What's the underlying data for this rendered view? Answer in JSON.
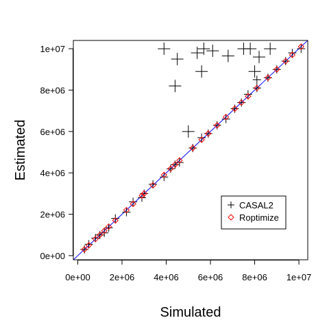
{
  "chart_data": {
    "type": "scatter",
    "xlabel": "Simulated",
    "ylabel": "Estimated",
    "xlim": [
      -200000,
      10400000
    ],
    "ylim": [
      -200000,
      10400000
    ],
    "x_ticks": [
      0,
      2000000,
      4000000,
      6000000,
      8000000,
      10000000
    ],
    "x_tick_labels": [
      "0e+00",
      "2e+06",
      "4e+06",
      "6e+06",
      "8e+06",
      "1e+07"
    ],
    "y_ticks": [
      0,
      2000000,
      4000000,
      6000000,
      8000000,
      10000000
    ],
    "y_tick_labels": [
      "0e+00",
      "2e+06",
      "4e+06",
      "6e+06",
      "8e+06",
      "1e+07"
    ],
    "grid": false,
    "legend_position": "bottom-right",
    "reference_line": {
      "slope": 1,
      "intercept": 0,
      "color": "#0000ff"
    },
    "series": [
      {
        "name": "CASAL2",
        "marker": "plus",
        "color": "#000000",
        "points": [
          [
            3900000,
            10000000
          ],
          [
            4500000,
            9500000
          ],
          [
            5400000,
            9800000
          ],
          [
            5700000,
            10000000
          ],
          [
            6100000,
            9900000
          ],
          [
            6800000,
            9650000
          ],
          [
            7500000,
            10000000
          ],
          [
            7800000,
            10000000
          ],
          [
            8200000,
            9600000
          ],
          [
            8700000,
            10000000
          ],
          [
            8000000,
            8900000
          ],
          [
            8100000,
            8500000
          ],
          [
            5600000,
            8900000
          ],
          [
            4400000,
            8200000
          ],
          [
            5000000,
            6000000
          ],
          [
            300000,
            300000
          ],
          [
            500000,
            550000
          ],
          [
            800000,
            850000
          ],
          [
            1000000,
            1000000
          ],
          [
            1400000,
            1350000
          ],
          [
            1700000,
            1800000
          ],
          [
            2200000,
            2100000
          ],
          [
            2500000,
            2600000
          ],
          [
            2900000,
            2800000
          ],
          [
            3400000,
            3450000
          ],
          [
            3900000,
            3800000
          ],
          [
            4200000,
            4200000
          ],
          [
            4600000,
            4500000
          ],
          [
            5200000,
            5200000
          ],
          [
            5600000,
            5700000
          ],
          [
            5900000,
            5900000
          ],
          [
            6300000,
            6300000
          ],
          [
            6700000,
            6600000
          ],
          [
            7100000,
            7100000
          ],
          [
            7400000,
            7400000
          ],
          [
            7700000,
            7800000
          ],
          [
            8100000,
            8100000
          ],
          [
            8600000,
            8600000
          ],
          [
            9000000,
            9000000
          ],
          [
            9400000,
            9400000
          ],
          [
            9700000,
            9800000
          ],
          [
            10100000,
            10000000
          ],
          [
            1200000,
            1100000
          ],
          [
            3000000,
            3000000
          ],
          [
            4400000,
            4400000
          ]
        ]
      },
      {
        "name": "Roptimize",
        "marker": "diamond",
        "color": "#ff0000",
        "points": [
          [
            300000,
            300000
          ],
          [
            500000,
            500000
          ],
          [
            800000,
            800000
          ],
          [
            1000000,
            1000000
          ],
          [
            1400000,
            1400000
          ],
          [
            1700000,
            1700000
          ],
          [
            2200000,
            2200000
          ],
          [
            2500000,
            2500000
          ],
          [
            2900000,
            2900000
          ],
          [
            3400000,
            3400000
          ],
          [
            3900000,
            3900000
          ],
          [
            4200000,
            4200000
          ],
          [
            4600000,
            4600000
          ],
          [
            5200000,
            5200000
          ],
          [
            5600000,
            5600000
          ],
          [
            5900000,
            5900000
          ],
          [
            6300000,
            6300000
          ],
          [
            6700000,
            6700000
          ],
          [
            7100000,
            7100000
          ],
          [
            7400000,
            7400000
          ],
          [
            7700000,
            7700000
          ],
          [
            8100000,
            8100000
          ],
          [
            8600000,
            8600000
          ],
          [
            9000000,
            9000000
          ],
          [
            9400000,
            9400000
          ],
          [
            9700000,
            9700000
          ],
          [
            10100000,
            10100000
          ],
          [
            1200000,
            1200000
          ],
          [
            3000000,
            3000000
          ],
          [
            4400000,
            4400000
          ]
        ]
      }
    ]
  }
}
